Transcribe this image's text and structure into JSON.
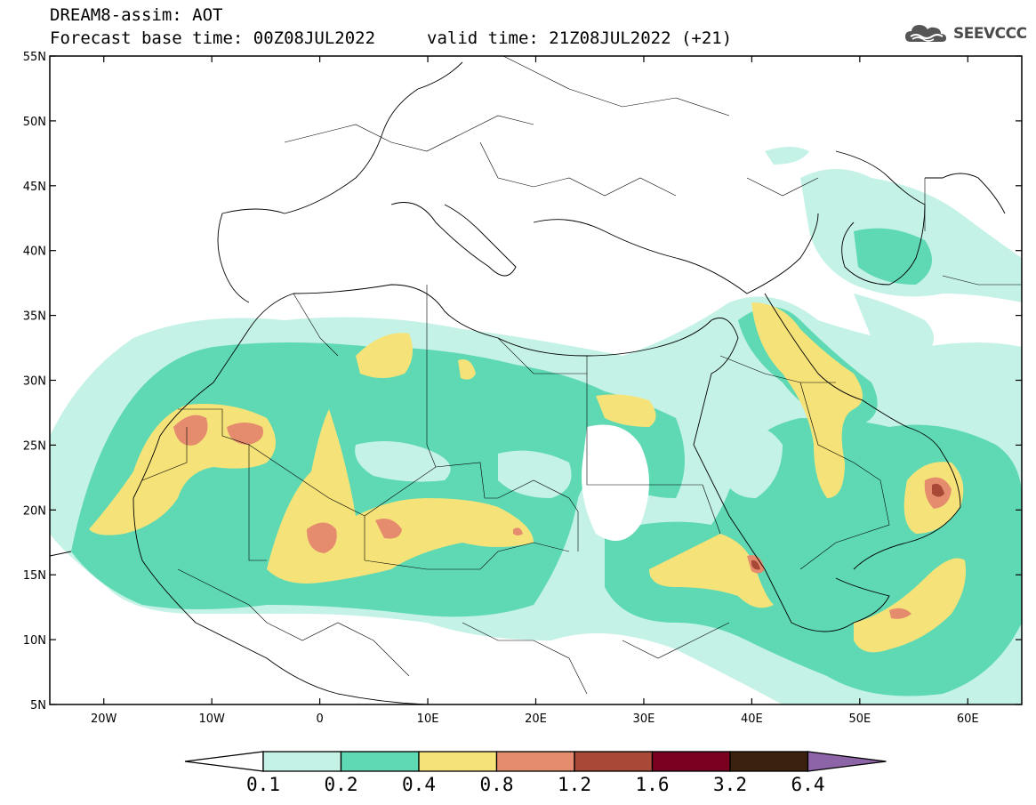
{
  "header": {
    "line1": "DREAM8-assim: AOT",
    "line2": "Forecast base time: 00Z08JUL2022",
    "valid": "valid time: 21Z08JUL2022 (+21)"
  },
  "logo": {
    "text": "SEEVCCC",
    "icon": "cloud-icon"
  },
  "map": {
    "lat_labels": [
      "55N",
      "50N",
      "45N",
      "40N",
      "35N",
      "30N",
      "25N",
      "20N",
      "15N",
      "10N",
      "5N"
    ],
    "lon_labels": [
      "20W",
      "10W",
      "0",
      "10E",
      "20E",
      "30E",
      "40E",
      "50E",
      "60E"
    ],
    "lon_range": [
      -25,
      65
    ],
    "lat_range": [
      5,
      55
    ]
  },
  "colorbar": {
    "levels": [
      "0.1",
      "0.2",
      "0.4",
      "0.8",
      "1.2",
      "1.6",
      "3.2",
      "6.4"
    ],
    "colors": [
      "#ffffff",
      "#c5f2e6",
      "#5ed9b3",
      "#f5e379",
      "#e58c6e",
      "#a84937",
      "#7a0020",
      "#3a220f",
      "#8e64a8"
    ]
  }
}
